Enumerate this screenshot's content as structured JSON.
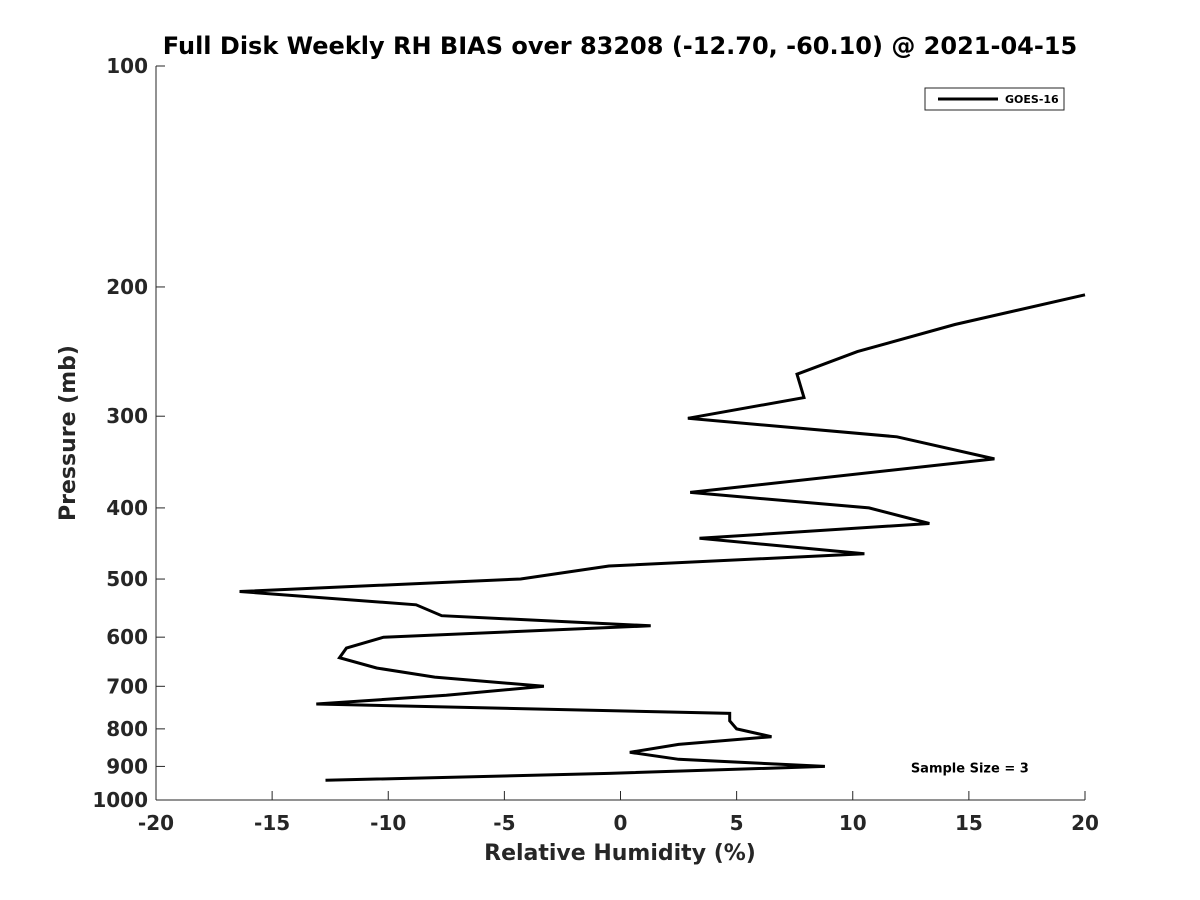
{
  "chart_data": {
    "type": "line",
    "title": "Full Disk Weekly RH BIAS over 83208 (-12.70, -60.10) @ 2021-04-15",
    "xlabel": "Relative Humidity (%)",
    "ylabel": "Pressure (mb)",
    "xlim": [
      -20,
      20
    ],
    "ylim": [
      100,
      1000
    ],
    "y_scale": "log",
    "y_reversed": true,
    "x_ticks": [
      -20,
      -15,
      -10,
      -5,
      0,
      5,
      10,
      15,
      20
    ],
    "x_tick_labels": [
      "-20",
      "-15",
      "-10",
      "-5",
      "0",
      "5",
      "10",
      "15",
      "20"
    ],
    "y_ticks": [
      100,
      200,
      300,
      400,
      500,
      600,
      700,
      800,
      900,
      1000
    ],
    "y_tick_labels": [
      "100",
      "200",
      "300",
      "400",
      "500",
      "600",
      "700",
      "800",
      "900",
      "1000"
    ],
    "grid": false,
    "legend_position": "top-right",
    "series": [
      {
        "name": "GOES-16",
        "color": "#000000",
        "points": [
          {
            "x": 20.0,
            "y": 205
          },
          {
            "x": 14.4,
            "y": 225
          },
          {
            "x": 10.2,
            "y": 245
          },
          {
            "x": 7.6,
            "y": 263
          },
          {
            "x": 7.9,
            "y": 283
          },
          {
            "x": 2.9,
            "y": 302
          },
          {
            "x": 11.9,
            "y": 320
          },
          {
            "x": 16.1,
            "y": 343
          },
          {
            "x": 3.0,
            "y": 381
          },
          {
            "x": 10.7,
            "y": 400
          },
          {
            "x": 13.3,
            "y": 420
          },
          {
            "x": 3.4,
            "y": 440
          },
          {
            "x": 10.5,
            "y": 462
          },
          {
            "x": -0.5,
            "y": 480
          },
          {
            "x": -4.3,
            "y": 500
          },
          {
            "x": -16.4,
            "y": 520
          },
          {
            "x": -8.8,
            "y": 542
          },
          {
            "x": -7.7,
            "y": 561
          },
          {
            "x": 1.3,
            "y": 579
          },
          {
            "x": -10.2,
            "y": 600
          },
          {
            "x": -11.8,
            "y": 621
          },
          {
            "x": -12.1,
            "y": 640
          },
          {
            "x": -10.5,
            "y": 661
          },
          {
            "x": -8.0,
            "y": 680
          },
          {
            "x": -3.3,
            "y": 700
          },
          {
            "x": -7.5,
            "y": 720
          },
          {
            "x": -13.1,
            "y": 740
          },
          {
            "x": 4.7,
            "y": 762
          },
          {
            "x": 4.7,
            "y": 780
          },
          {
            "x": 5.0,
            "y": 800
          },
          {
            "x": 6.5,
            "y": 820
          },
          {
            "x": 2.5,
            "y": 840
          },
          {
            "x": 0.4,
            "y": 861
          },
          {
            "x": 2.5,
            "y": 880
          },
          {
            "x": 8.8,
            "y": 900
          },
          {
            "x": -0.5,
            "y": 920
          },
          {
            "x": -12.7,
            "y": 940
          }
        ]
      }
    ],
    "annotations": [
      {
        "text": "Sample Size = 3",
        "x": 12.5,
        "y": 900
      }
    ]
  }
}
